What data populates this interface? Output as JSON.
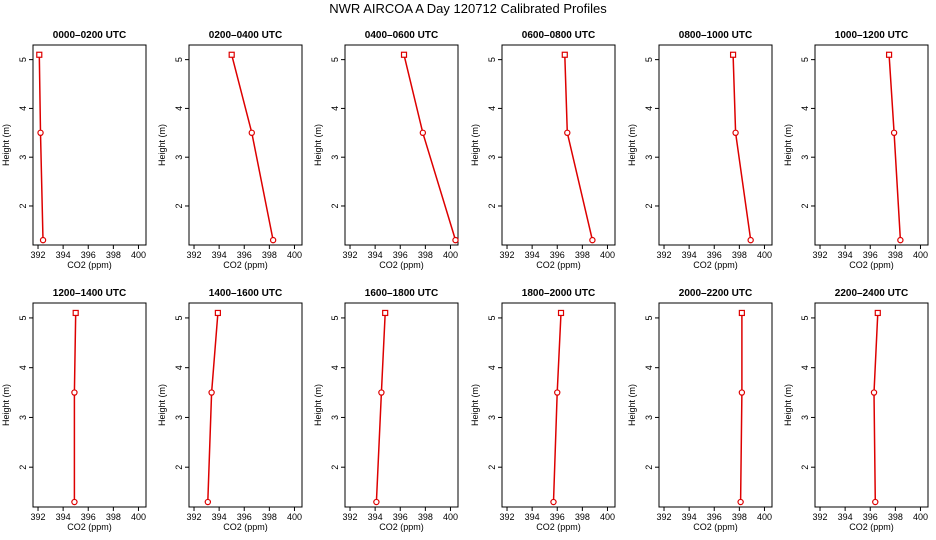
{
  "title": "NWR AIRCOA A  Day 120712  Calibrated Profiles",
  "colors": {
    "series": "#dd0000",
    "axis": "#000000"
  },
  "chart_data": [
    {
      "type": "line",
      "title": "0000–0200 UTC",
      "xlabel": "CO2 (ppm)",
      "ylabel": "Height (m)",
      "xlim": [
        391.6,
        400.6
      ],
      "ylim": [
        1.2,
        5.3
      ],
      "xticks": [
        "392",
        "394",
        "396",
        "398",
        "400"
      ],
      "yticks": [
        "2",
        "3",
        "4",
        "5"
      ],
      "points": [
        {
          "x": 392.1,
          "y": 5.1
        },
        {
          "x": 392.2,
          "y": 3.5
        },
        {
          "x": 392.4,
          "y": 1.3
        }
      ]
    },
    {
      "type": "line",
      "title": "0200–0400 UTC",
      "xlabel": "CO2 (ppm)",
      "ylabel": "Height (m)",
      "xlim": [
        391.6,
        400.6
      ],
      "ylim": [
        1.2,
        5.3
      ],
      "xticks": [
        "392",
        "394",
        "396",
        "398",
        "400"
      ],
      "yticks": [
        "2",
        "3",
        "4",
        "5"
      ],
      "points": [
        {
          "x": 395.0,
          "y": 5.1
        },
        {
          "x": 396.6,
          "y": 3.5
        },
        {
          "x": 398.3,
          "y": 1.3
        }
      ]
    },
    {
      "type": "line",
      "title": "0400–0600 UTC",
      "xlabel": "CO2 (ppm)",
      "ylabel": "Height (m)",
      "xlim": [
        391.6,
        400.6
      ],
      "ylim": [
        1.2,
        5.3
      ],
      "xticks": [
        "392",
        "394",
        "396",
        "398",
        "400"
      ],
      "yticks": [
        "2",
        "3",
        "4",
        "5"
      ],
      "points": [
        {
          "x": 396.3,
          "y": 5.1
        },
        {
          "x": 397.8,
          "y": 3.5
        },
        {
          "x": 400.4,
          "y": 1.3
        }
      ]
    },
    {
      "type": "line",
      "title": "0600–0800 UTC",
      "xlabel": "CO2 (ppm)",
      "ylabel": "Height (m)",
      "xlim": [
        391.6,
        400.6
      ],
      "ylim": [
        1.2,
        5.3
      ],
      "xticks": [
        "392",
        "394",
        "396",
        "398",
        "400"
      ],
      "yticks": [
        "2",
        "3",
        "4",
        "5"
      ],
      "points": [
        {
          "x": 396.6,
          "y": 5.1
        },
        {
          "x": 396.8,
          "y": 3.5
        },
        {
          "x": 398.8,
          "y": 1.3
        }
      ]
    },
    {
      "type": "line",
      "title": "0800–1000 UTC",
      "xlabel": "CO2 (ppm)",
      "ylabel": "Height (m)",
      "xlim": [
        391.6,
        400.6
      ],
      "ylim": [
        1.2,
        5.3
      ],
      "xticks": [
        "392",
        "394",
        "396",
        "398",
        "400"
      ],
      "yticks": [
        "2",
        "3",
        "4",
        "5"
      ],
      "points": [
        {
          "x": 397.5,
          "y": 5.1
        },
        {
          "x": 397.7,
          "y": 3.5
        },
        {
          "x": 398.9,
          "y": 1.3
        }
      ]
    },
    {
      "type": "line",
      "title": "1000–1200 UTC",
      "xlabel": "CO2 (ppm)",
      "ylabel": "Height (m)",
      "xlim": [
        391.6,
        400.6
      ],
      "ylim": [
        1.2,
        5.3
      ],
      "xticks": [
        "392",
        "394",
        "396",
        "398",
        "400"
      ],
      "yticks": [
        "2",
        "3",
        "4",
        "5"
      ],
      "points": [
        {
          "x": 397.5,
          "y": 5.1
        },
        {
          "x": 397.9,
          "y": 3.5
        },
        {
          "x": 398.4,
          "y": 1.3
        }
      ]
    },
    {
      "type": "line",
      "title": "1200–1400 UTC",
      "xlabel": "CO2 (ppm)",
      "ylabel": "Height (m)",
      "xlim": [
        391.6,
        400.6
      ],
      "ylim": [
        1.2,
        5.3
      ],
      "xticks": [
        "392",
        "394",
        "396",
        "398",
        "400"
      ],
      "yticks": [
        "2",
        "3",
        "4",
        "5"
      ],
      "points": [
        {
          "x": 395.0,
          "y": 5.1
        },
        {
          "x": 394.9,
          "y": 3.5
        },
        {
          "x": 394.9,
          "y": 1.3
        }
      ]
    },
    {
      "type": "line",
      "title": "1400–1600 UTC",
      "xlabel": "CO2 (ppm)",
      "ylabel": "Height (m)",
      "xlim": [
        391.6,
        400.6
      ],
      "ylim": [
        1.2,
        5.3
      ],
      "xticks": [
        "392",
        "394",
        "396",
        "398",
        "400"
      ],
      "yticks": [
        "2",
        "3",
        "4",
        "5"
      ],
      "points": [
        {
          "x": 393.9,
          "y": 5.1
        },
        {
          "x": 393.4,
          "y": 3.5
        },
        {
          "x": 393.1,
          "y": 1.3
        }
      ]
    },
    {
      "type": "line",
      "title": "1600–1800 UTC",
      "xlabel": "CO2 (ppm)",
      "ylabel": "Height (m)",
      "xlim": [
        391.6,
        400.6
      ],
      "ylim": [
        1.2,
        5.3
      ],
      "xticks": [
        "392",
        "394",
        "396",
        "398",
        "400"
      ],
      "yticks": [
        "2",
        "3",
        "4",
        "5"
      ],
      "points": [
        {
          "x": 394.8,
          "y": 5.1
        },
        {
          "x": 394.5,
          "y": 3.5
        },
        {
          "x": 394.1,
          "y": 1.3
        }
      ]
    },
    {
      "type": "line",
      "title": "1800–2000 UTC",
      "xlabel": "CO2 (ppm)",
      "ylabel": "Height (m)",
      "xlim": [
        391.6,
        400.6
      ],
      "ylim": [
        1.2,
        5.3
      ],
      "xticks": [
        "392",
        "394",
        "396",
        "398",
        "400"
      ],
      "yticks": [
        "2",
        "3",
        "4",
        "5"
      ],
      "points": [
        {
          "x": 396.3,
          "y": 5.1
        },
        {
          "x": 396.0,
          "y": 3.5
        },
        {
          "x": 395.7,
          "y": 1.3
        }
      ]
    },
    {
      "type": "line",
      "title": "2000–2200 UTC",
      "xlabel": "CO2 (ppm)",
      "ylabel": "Height (m)",
      "xlim": [
        391.6,
        400.6
      ],
      "ylim": [
        1.2,
        5.3
      ],
      "xticks": [
        "392",
        "394",
        "396",
        "398",
        "400"
      ],
      "yticks": [
        "2",
        "3",
        "4",
        "5"
      ],
      "points": [
        {
          "x": 398.2,
          "y": 5.1
        },
        {
          "x": 398.2,
          "y": 3.5
        },
        {
          "x": 398.1,
          "y": 1.3
        }
      ]
    },
    {
      "type": "line",
      "title": "2200–2400 UTC",
      "xlabel": "CO2 (ppm)",
      "ylabel": "Height (m)",
      "xlim": [
        391.6,
        400.6
      ],
      "ylim": [
        1.2,
        5.3
      ],
      "xticks": [
        "392",
        "394",
        "396",
        "398",
        "400"
      ],
      "yticks": [
        "2",
        "3",
        "4",
        "5"
      ],
      "points": [
        {
          "x": 396.6,
          "y": 5.1
        },
        {
          "x": 396.3,
          "y": 3.5
        },
        {
          "x": 396.4,
          "y": 1.3
        }
      ]
    }
  ]
}
